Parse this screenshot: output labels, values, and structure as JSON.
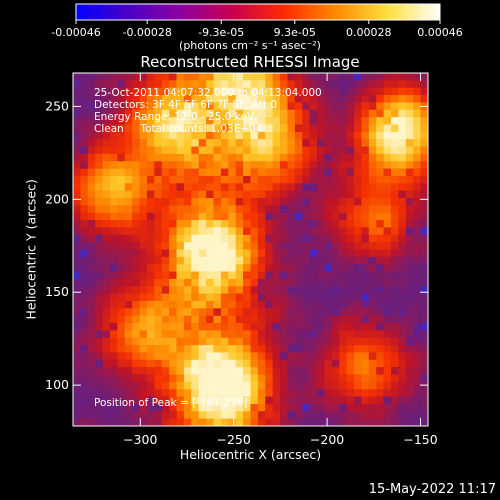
{
  "colorbar": {
    "ticks": [
      "-0.00046",
      "-0.00028",
      "-9.3e-05",
      "9.3e-05",
      "0.00028",
      "0.00046"
    ],
    "tick_values": [
      -0.00046,
      -0.00028,
      -9.3e-05,
      9.3e-05,
      0.00028,
      0.00046
    ],
    "range": [
      -0.00046,
      0.00046
    ],
    "unit_label": "(photons cm⁻² s⁻¹ asec⁻²)",
    "colors": [
      "#0000ff",
      "#4a00c8",
      "#8c00a0",
      "#c80050",
      "#ff2a00",
      "#ff8a00",
      "#ffe040",
      "#ffffff"
    ]
  },
  "chart_data": {
    "type": "heatmap",
    "title": "Reconstructed RHESSI Image",
    "xlabel": "Heliocentric X (arcsec)",
    "ylabel": "Heliocentric Y (arcsec)",
    "xlim": [
      -336,
      -146
    ],
    "ylim": [
      78,
      268
    ],
    "x_ticks": [
      -300,
      -250,
      -200,
      -150
    ],
    "y_ticks": [
      100,
      150,
      200,
      250
    ],
    "annotations": {
      "time": "25-Oct-2011 04:07:32.000 to 04:13:04.000",
      "detectors": "Detectors: 3F 4F 5F 6F 7F 8F, Att 0",
      "energy": "Energy Range: 12.0 - 25.0 keV",
      "method": "Clean     Total counts: 1.03E+04",
      "peak": "Position of Peak = [-161,236]"
    },
    "peak": [
      -161,
      236
    ],
    "bright_regions": [
      {
        "x": -262,
        "y": 170,
        "level": 0.75
      },
      {
        "x": -255,
        "y": 100,
        "level": 0.9
      },
      {
        "x": -161,
        "y": 236,
        "level": 1.0
      },
      {
        "x": -315,
        "y": 205,
        "level": 0.7
      },
      {
        "x": -285,
        "y": 240,
        "level": 0.65
      },
      {
        "x": -230,
        "y": 230,
        "level": 0.6
      },
      {
        "x": -300,
        "y": 130,
        "level": 0.6
      },
      {
        "x": -180,
        "y": 110,
        "level": 0.55
      },
      {
        "x": -240,
        "y": 260,
        "level": 0.6
      },
      {
        "x": -175,
        "y": 190,
        "level": 0.5
      }
    ]
  },
  "footer": {
    "timestamp": "15-May-2022 11:17"
  }
}
